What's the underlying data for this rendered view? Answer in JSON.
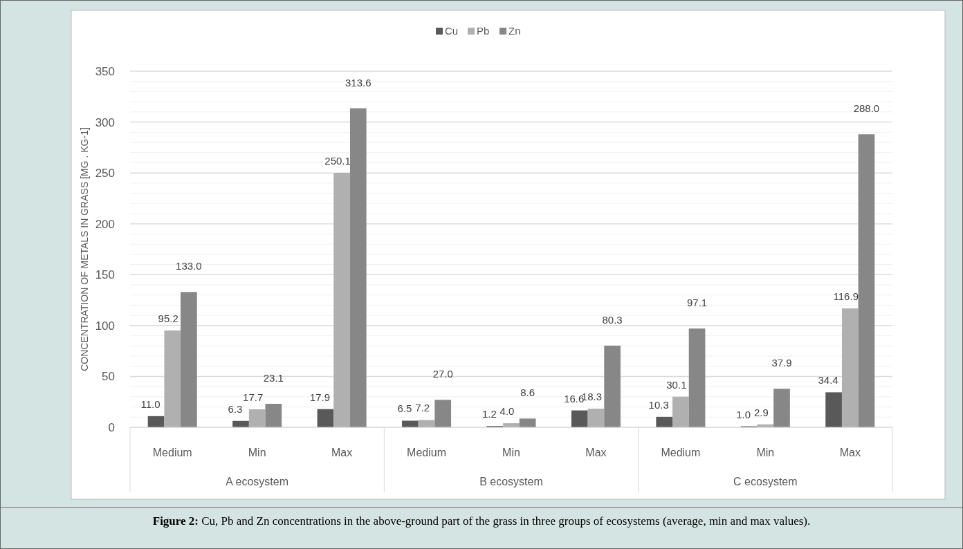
{
  "chart_data": {
    "type": "bar",
    "ylabel": "CONCENTRATION OF METALS IN GRASS [MG . KG-1]",
    "categories": [
      "Medium",
      "Min",
      "Max",
      "Medium",
      "Min",
      "Max",
      "Medium",
      "Min",
      "Max"
    ],
    "series": [
      {
        "name": "Cu",
        "color": "#595959",
        "values": [
          11.0,
          6.3,
          17.9,
          6.5,
          1.2,
          16.6,
          10.3,
          1.0,
          34.4
        ],
        "value_labels": [
          "11.0",
          "6.3",
          "17.9",
          "6.5",
          "1.2",
          "16.6",
          "10.3",
          "1.0",
          "34.4"
        ]
      },
      {
        "name": "Pb",
        "color": "#b0b0b0",
        "values": [
          95.2,
          17.7,
          250.1,
          7.2,
          4.0,
          18.3,
          30.1,
          2.9,
          116.9
        ],
        "value_labels": [
          "95.2",
          "17.7",
          "250.1",
          "7.2",
          "4.0",
          "18.3",
          "30.1",
          "2.9",
          "116.9"
        ]
      },
      {
        "name": "Zn",
        "color": "#878787",
        "values": [
          133.0,
          23.1,
          313.6,
          27.0,
          8.6,
          80.3,
          97.1,
          37.9,
          288.0
        ],
        "value_labels": [
          "133.0",
          "23.1",
          "313.6",
          "27.0",
          "8.6",
          "80.3",
          "97.1",
          "37.9",
          "288.0"
        ]
      }
    ],
    "ylim": [
      0,
      350
    ],
    "yticks": [
      0,
      {
        "value": 10,
        "label": null
      },
      {
        "value": 20,
        "label": null
      },
      {
        "value": 30,
        "label": null
      },
      {
        "value": 40,
        "label": null
      },
      50,
      {
        "value": 60,
        "label": null
      },
      {
        "value": 70,
        "label": null
      },
      {
        "value": 80,
        "label": null
      },
      {
        "value": 90,
        "label": null
      },
      100,
      {
        "value": 110,
        "label": null
      },
      {
        "value": 120,
        "label": null
      },
      {
        "value": 130,
        "label": null
      },
      {
        "value": 140,
        "label": null
      },
      150,
      {
        "value": 160,
        "label": null
      },
      {
        "value": 170,
        "label": null
      },
      {
        "value": 180,
        "label": null
      },
      {
        "value": 190,
        "label": null
      },
      200,
      {
        "value": 210,
        "label": null
      },
      {
        "value": 220,
        "label": null
      },
      {
        "value": 230,
        "label": null
      },
      {
        "value": 240,
        "label": null
      },
      250,
      {
        "value": 260,
        "label": null
      },
      {
        "value": 270,
        "label": null
      },
      {
        "value": 280,
        "label": null
      },
      {
        "value": 290,
        "label": null
      },
      300,
      {
        "value": 310,
        "label": null
      },
      {
        "value": 320,
        "label": null
      },
      {
        "value": 330,
        "label": null
      },
      {
        "value": 340,
        "label": null
      },
      350
    ],
    "grid": "y",
    "legend": "top",
    "annotations": [
      "A ecosystem",
      "B ecosystem",
      "C ecosystem",
      "Figure 2: Cu, Pb and Zn concentrations in the above-ground part of the grass in three groups of ecosystems (average, min and max values)."
    ]
  }
}
